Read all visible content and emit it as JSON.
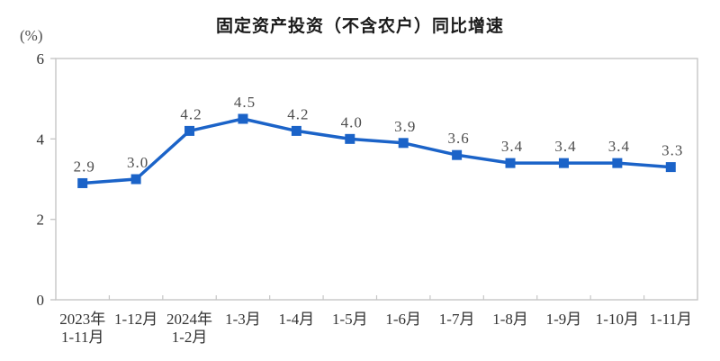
{
  "chart_data": {
    "type": "line",
    "title": "固定资产投资（不含农户）同比增速",
    "unit_label": "(%)",
    "categories": [
      "2023年\n1-11月",
      "1-12月",
      "2024年\n1-2月",
      "1-3月",
      "1-4月",
      "1-5月",
      "1-6月",
      "1-7月",
      "1-8月",
      "1-9月",
      "1-10月",
      "1-11月"
    ],
    "values": [
      2.9,
      3.0,
      4.2,
      4.5,
      4.2,
      4.0,
      3.9,
      3.6,
      3.4,
      3.4,
      3.4,
      3.3
    ],
    "value_labels": [
      "2.9",
      "3.0",
      "4.2",
      "4.5",
      "4.2",
      "4.0",
      "3.9",
      "3.6",
      "3.4",
      "3.4",
      "3.4",
      "3.3"
    ],
    "xlabel": "",
    "ylabel": "(%)",
    "ylim": [
      0,
      6
    ],
    "yticks": [
      0,
      2,
      4,
      6
    ],
    "ytick_labels": [
      "0",
      "2",
      "4",
      "6"
    ],
    "grid": false,
    "legend": "none",
    "marker": "square",
    "colors": {
      "line": "#1b63c8",
      "marker": "#1b63c8",
      "axis": "#c6c6c6",
      "tick_label": "#333333",
      "value_label": "#4d4d4d",
      "title": "#1a1a1a"
    }
  }
}
